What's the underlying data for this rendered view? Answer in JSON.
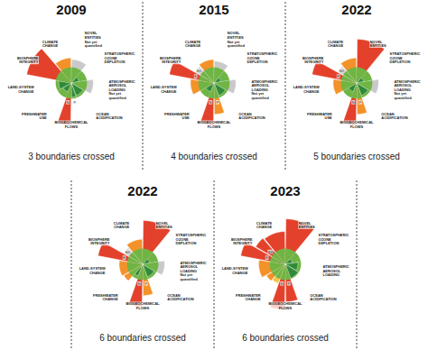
{
  "chart_data": [
    {
      "type": "polar_bar",
      "title": "2009",
      "subtitle": "3 boundaries crossed",
      "ylim": [
        0,
        3
      ],
      "boundary": 1,
      "tick_labels": false,
      "boundaries": [
        {
          "label": "CLIMATE CHANGE",
          "parts": [
            {
              "value": 1.6,
              "color": "#f39229"
            }
          ]
        },
        {
          "label": "NOVEL ENTITIES",
          "note": "Not yet quantified",
          "parts": [
            {
              "value": 1.5,
              "color": "#c9c9c9"
            }
          ]
        },
        {
          "label": "STRATOSPHERIC OZONE DEPLETION",
          "parts": [
            {
              "value": 0.5,
              "color": "#2f8a3a"
            }
          ]
        },
        {
          "label": "ATMOSPHERIC AEROSOL LOADING",
          "note": "Not yet quantified",
          "parts": [
            {
              "value": 1.4,
              "color": "#c9c9c9"
            }
          ]
        },
        {
          "label": "OCEAN ACIDIFICATION",
          "parts": [
            {
              "value": 0.85,
              "color": "#2f8a3a"
            }
          ]
        },
        {
          "label": "BIOGEOCHEMICAL FLOWS",
          "parts": [
            {
              "label": "P",
              "value": 0.9,
              "color": "#2f8a3a"
            },
            {
              "label": "N",
              "value": 2.7,
              "color": "#e3412b"
            }
          ]
        },
        {
          "label": "FRESHWATER USE",
          "parts": [
            {
              "value": 0.6,
              "color": "#2f8a3a"
            }
          ]
        },
        {
          "label": "LAND-SYSTEM CHANGE",
          "parts": [
            {
              "value": 0.8,
              "color": "#2f8a3a"
            }
          ]
        },
        {
          "label": "BIOSPHERE INTEGRITY",
          "parts": [
            {
              "value": 2.9,
              "color": "#e3412b"
            }
          ]
        }
      ]
    },
    {
      "type": "polar_bar",
      "title": "2015",
      "subtitle": "4 boundaries crossed",
      "ylim": [
        0,
        3
      ],
      "boundary": 1,
      "tick_labels": false,
      "boundaries": [
        {
          "label": "CLIMATE CHANGE",
          "parts": [
            {
              "value": 1.5,
              "color": "#f39229"
            }
          ]
        },
        {
          "label": "NOVEL ENTITIES",
          "note": "Not yet quantified",
          "parts": [
            {
              "value": 1.4,
              "color": "#c9c9c9"
            }
          ]
        },
        {
          "label": "STRATOSPHERIC OZONE DEPLETION",
          "parts": [
            {
              "value": 0.45,
              "color": "#2f8a3a"
            }
          ]
        },
        {
          "label": "ATMOSPHERIC AEROSOL LOADING",
          "note": "Not yet quantified",
          "parts": [
            {
              "value": 1.4,
              "color": "#c9c9c9"
            }
          ]
        },
        {
          "label": "OCEAN ACIDIFICATION",
          "parts": [
            {
              "value": 0.85,
              "color": "#2f8a3a"
            }
          ]
        },
        {
          "label": "BIOGEOCHEMICAL FLOWS",
          "parts": [
            {
              "label": "P",
              "value": 2.0,
              "color": "#f39229"
            },
            {
              "label": "N",
              "value": 2.7,
              "color": "#e3412b"
            }
          ]
        },
        {
          "label": "FRESHWATER USE",
          "parts": [
            {
              "value": 0.6,
              "color": "#2f8a3a"
            }
          ]
        },
        {
          "label": "LAND-SYSTEM CHANGE",
          "parts": [
            {
              "value": 1.5,
              "color": "#f39229"
            }
          ]
        },
        {
          "label": "BIOSPHERE INTEGRITY",
          "parts": [
            {
              "label": "E",
              "value": 2.9,
              "color": "#e3412b"
            },
            {
              "label": "BII",
              "value": 1.4,
              "color": "#c9c9c9"
            }
          ]
        }
      ]
    },
    {
      "type": "polar_bar",
      "title": "2022",
      "subtitle": "5 boundaries crossed",
      "ylim": [
        0,
        3
      ],
      "boundary": 1,
      "tick_labels": false,
      "boundaries": [
        {
          "label": "CLIMATE CHANGE",
          "parts": [
            {
              "value": 1.6,
              "color": "#f39229"
            }
          ]
        },
        {
          "label": "NOVEL ENTITIES",
          "parts": [
            {
              "value": 2.8,
              "color": "#e3412b"
            }
          ]
        },
        {
          "label": "STRATOSPHERIC OZONE DEPLETION",
          "parts": [
            {
              "value": 0.45,
              "color": "#2f8a3a"
            }
          ]
        },
        {
          "label": "ATMOSPHERIC AEROSOL LOADING",
          "note": "Not yet quantified",
          "parts": [
            {
              "value": 1.4,
              "color": "#c9c9c9"
            }
          ]
        },
        {
          "label": "OCEAN ACIDIFICATION",
          "parts": [
            {
              "value": 0.85,
              "color": "#2f8a3a"
            }
          ]
        },
        {
          "label": "BIOGEOCHEMICAL FLOWS",
          "parts": [
            {
              "label": "P",
              "value": 2.0,
              "color": "#f39229"
            },
            {
              "label": "N",
              "value": 2.7,
              "color": "#e3412b"
            }
          ]
        },
        {
          "label": "FRESHWATER USE",
          "parts": [
            {
              "value": 0.6,
              "color": "#2f8a3a"
            }
          ]
        },
        {
          "label": "LAND-SYSTEM CHANGE",
          "parts": [
            {
              "value": 1.5,
              "color": "#f39229"
            }
          ]
        },
        {
          "label": "BIOSPHERE INTEGRITY",
          "parts": [
            {
              "label": "E",
              "value": 2.9,
              "color": "#e3412b"
            },
            {
              "label": "BII",
              "value": 1.4,
              "color": "#c9c9c9"
            }
          ]
        }
      ]
    },
    {
      "type": "polar_bar",
      "title": "2022",
      "subtitle": "6 boundaries crossed",
      "ylim": [
        0,
        3
      ],
      "boundary": 1,
      "tick_labels": false,
      "boundaries": [
        {
          "label": "CLIMATE CHANGE",
          "parts": [
            {
              "value": 1.6,
              "color": "#f39229"
            }
          ]
        },
        {
          "label": "NOVEL ENTITIES",
          "parts": [
            {
              "value": 2.8,
              "color": "#e3412b"
            }
          ]
        },
        {
          "label": "STRATOSPHERIC OZONE DEPLETION",
          "parts": [
            {
              "value": 0.45,
              "color": "#2f8a3a"
            }
          ]
        },
        {
          "label": "ATMOSPHERIC AEROSOL LOADING",
          "note": "Not yet quantified",
          "parts": [
            {
              "value": 1.4,
              "color": "#c9c9c9"
            }
          ]
        },
        {
          "label": "OCEAN ACIDIFICATION",
          "parts": [
            {
              "value": 0.85,
              "color": "#2f8a3a"
            }
          ]
        },
        {
          "label": "BIOGEOCHEMICAL FLOWS",
          "parts": [
            {
              "label": "P",
              "value": 2.0,
              "color": "#f39229"
            },
            {
              "label": "N",
              "value": 2.7,
              "color": "#e3412b"
            }
          ]
        },
        {
          "label": "FRESHWATER CHANGE",
          "parts": [
            {
              "value": 0.8,
              "color": "#2f8a3a"
            },
            {
              "value": 1.4,
              "color": "#f39229"
            }
          ]
        },
        {
          "label": "LAND-SYSTEM CHANGE",
          "parts": [
            {
              "value": 1.5,
              "color": "#f39229"
            }
          ]
        },
        {
          "label": "BIOSPHERE INTEGRITY",
          "parts": [
            {
              "label": "E",
              "value": 2.9,
              "color": "#e3412b"
            },
            {
              "label": "BII",
              "value": 1.4,
              "color": "#c9c9c9"
            }
          ]
        }
      ]
    },
    {
      "type": "polar_bar",
      "title": "2023",
      "subtitle": "6 boundaries crossed",
      "ylim": [
        0,
        3
      ],
      "boundary": 1,
      "tick_labels": false,
      "boundaries": [
        {
          "label": "CLIMATE CHANGE",
          "parts": [
            {
              "value": 2.1,
              "color": "#e3412b"
            }
          ]
        },
        {
          "label": "NOVEL ENTITIES",
          "parts": [
            {
              "value": 2.9,
              "color": "#e3412b"
            }
          ]
        },
        {
          "label": "STRATOSPHERIC OZONE DEPLETION",
          "parts": [
            {
              "value": 0.45,
              "color": "#2f8a3a"
            }
          ]
        },
        {
          "label": "ATMOSPHERIC AEROSOL LOADING",
          "parts": [
            {
              "value": 0.8,
              "color": "#2f8a3a"
            }
          ]
        },
        {
          "label": "OCEAN ACIDIFICATION",
          "parts": [
            {
              "value": 0.95,
              "color": "#2f8a3a"
            }
          ]
        },
        {
          "label": "BIOGEOCHEMICAL FLOWS",
          "parts": [
            {
              "label": "P",
              "value": 2.4,
              "color": "#e3412b"
            },
            {
              "label": "N",
              "value": 2.9,
              "color": "#e3412b"
            }
          ]
        },
        {
          "label": "FRESHWATER CHANGE",
          "parts": [
            {
              "value": 1.3,
              "color": "#f6c343"
            },
            {
              "value": 1.4,
              "color": "#f39229"
            }
          ]
        },
        {
          "label": "LAND-SYSTEM CHANGE",
          "parts": [
            {
              "value": 1.7,
              "color": "#f39229"
            }
          ]
        },
        {
          "label": "BIOSPHERE INTEGRITY",
          "parts": [
            {
              "label": "E",
              "value": 2.9,
              "color": "#e3412b"
            },
            {
              "label": "BII",
              "value": 2.2,
              "color": "#e3412b"
            }
          ]
        }
      ]
    }
  ]
}
